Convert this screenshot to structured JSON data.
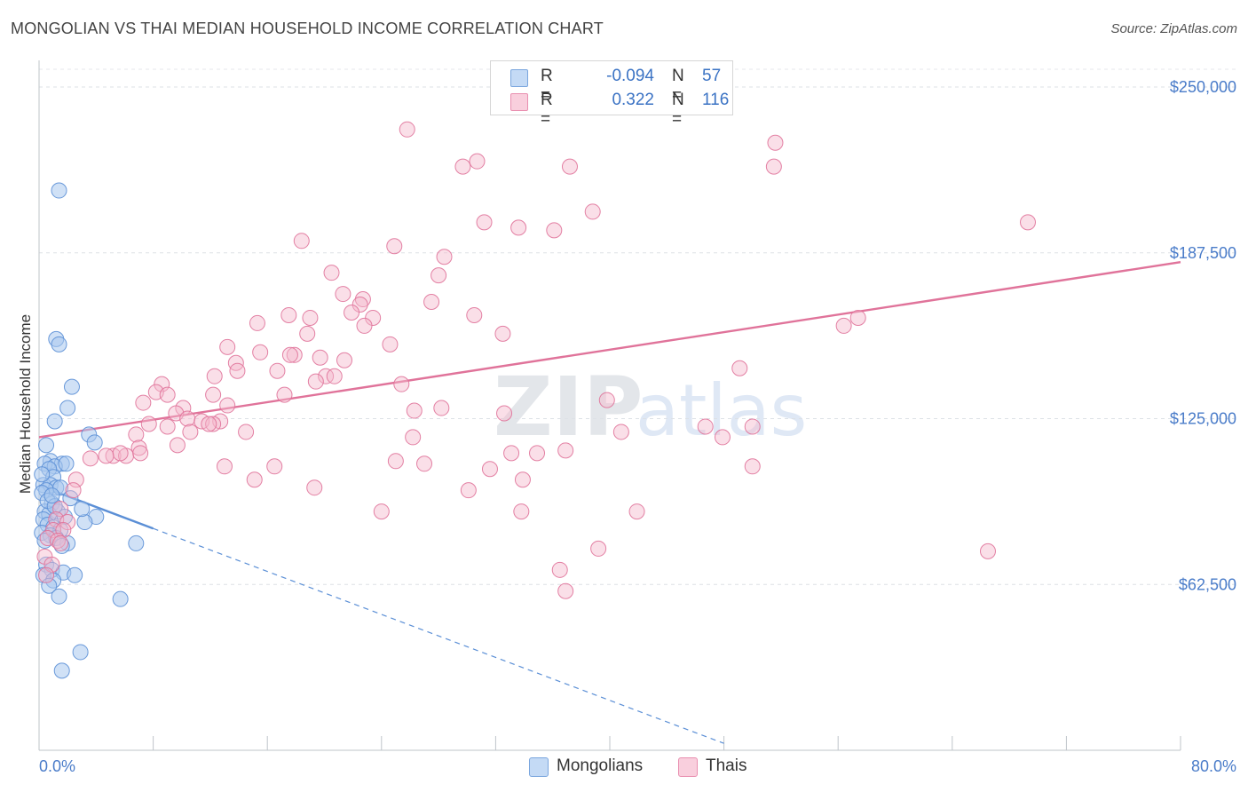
{
  "header": {
    "title": "MONGOLIAN VS THAI MEDIAN HOUSEHOLD INCOME CORRELATION CHART",
    "source": "Source: ZipAtlas.com"
  },
  "watermark": {
    "text_zip": "ZIP",
    "text_atlas": "atlas"
  },
  "legend": {
    "rows": [
      {
        "r_label": "R =",
        "r_value": "-0.094",
        "n_label": "N =",
        "n_value": "57",
        "color": "#a9c8ef"
      },
      {
        "r_label": "R =",
        "r_value": "0.322",
        "n_label": "N =",
        "n_value": "116",
        "color": "#f5b7cb"
      }
    ]
  },
  "bottom_legend": {
    "mongolians": "Mongolians",
    "thais": "Thais"
  },
  "chart_data": {
    "type": "scatter",
    "title": "MONGOLIAN VS THAI MEDIAN HOUSEHOLD INCOME CORRELATION CHART",
    "xlabel": "",
    "ylabel": "Median Household Income",
    "xlim": [
      0,
      80
    ],
    "ylim": [
      0,
      262500
    ],
    "x_tick_labels": [
      "0.0%",
      "80.0%"
    ],
    "y_ticks": [
      62500,
      125000,
      187500,
      250000
    ],
    "y_tick_labels": [
      "$62,500",
      "$125,000",
      "$187,500",
      "$250,000"
    ],
    "grid": true,
    "legend_position": "top-center",
    "series": [
      {
        "name": "Mongolians",
        "color": "#5b8fd6",
        "fill": "#a9c8ef",
        "trend": {
          "x": [
            0,
            8
          ],
          "y": [
            99800,
            83600
          ],
          "dashed_to": [
            48,
            2600
          ]
        },
        "points": [
          [
            1.4,
            211000
          ],
          [
            1.2,
            155000
          ],
          [
            1.4,
            153000
          ],
          [
            2.3,
            137000
          ],
          [
            1.1,
            124000
          ],
          [
            2.0,
            129000
          ],
          [
            3.5,
            119000
          ],
          [
            3.9,
            116000
          ],
          [
            0.5,
            115000
          ],
          [
            0.8,
            109000
          ],
          [
            1.6,
            108000
          ],
          [
            0.4,
            108000
          ],
          [
            1.1,
            107000
          ],
          [
            1.9,
            108000
          ],
          [
            0.7,
            106000
          ],
          [
            1.0,
            103000
          ],
          [
            0.3,
            100000
          ],
          [
            0.8,
            100000
          ],
          [
            1.2,
            99000
          ],
          [
            0.5,
            98000
          ],
          [
            1.5,
            99000
          ],
          [
            0.2,
            97000
          ],
          [
            0.9,
            93000
          ],
          [
            0.4,
            90000
          ],
          [
            1.3,
            90000
          ],
          [
            0.7,
            89000
          ],
          [
            1.8,
            88000
          ],
          [
            4.0,
            88000
          ],
          [
            0.3,
            87000
          ],
          [
            3.2,
            86000
          ],
          [
            0.6,
            85000
          ],
          [
            1.0,
            84000
          ],
          [
            1.5,
            83000
          ],
          [
            0.2,
            82000
          ],
          [
            0.8,
            81000
          ],
          [
            1.2,
            80000
          ],
          [
            0.4,
            79000
          ],
          [
            2.0,
            78000
          ],
          [
            6.8,
            78000
          ],
          [
            1.6,
            77000
          ],
          [
            0.5,
            70000
          ],
          [
            0.9,
            68000
          ],
          [
            1.7,
            67000
          ],
          [
            2.5,
            66000
          ],
          [
            0.3,
            66000
          ],
          [
            1.0,
            64000
          ],
          [
            0.7,
            62000
          ],
          [
            1.4,
            58000
          ],
          [
            5.7,
            57000
          ],
          [
            2.9,
            37000
          ],
          [
            1.6,
            30000
          ],
          [
            0.6,
            94000
          ],
          [
            1.1,
            92000
          ],
          [
            0.9,
            96000
          ],
          [
            2.2,
            95000
          ],
          [
            3.0,
            91000
          ],
          [
            0.2,
            104000
          ]
        ]
      },
      {
        "name": "Thais",
        "color": "#e0739a",
        "fill": "#f5b7cb",
        "trend": {
          "x": [
            0,
            80
          ],
          "y": [
            118000,
            184000
          ]
        },
        "points": [
          [
            25.8,
            234000
          ],
          [
            30.7,
            222000
          ],
          [
            29.7,
            220000
          ],
          [
            37.2,
            220000
          ],
          [
            51.5,
            220000
          ],
          [
            51.6,
            229000
          ],
          [
            69.3,
            199000
          ],
          [
            31.2,
            199000
          ],
          [
            38.8,
            203000
          ],
          [
            33.6,
            197000
          ],
          [
            36.1,
            196000
          ],
          [
            18.4,
            192000
          ],
          [
            24.9,
            190000
          ],
          [
            28.4,
            186000
          ],
          [
            20.5,
            180000
          ],
          [
            28.0,
            179000
          ],
          [
            21.3,
            172000
          ],
          [
            22.7,
            170000
          ],
          [
            27.5,
            169000
          ],
          [
            22.5,
            168000
          ],
          [
            21.9,
            165000
          ],
          [
            30.5,
            164000
          ],
          [
            23.4,
            163000
          ],
          [
            17.5,
            164000
          ],
          [
            19.0,
            163000
          ],
          [
            57.4,
            163000
          ],
          [
            15.3,
            161000
          ],
          [
            22.8,
            160000
          ],
          [
            56.4,
            160000
          ],
          [
            32.5,
            157000
          ],
          [
            18.8,
            157000
          ],
          [
            24.6,
            153000
          ],
          [
            13.2,
            152000
          ],
          [
            15.5,
            150000
          ],
          [
            17.9,
            149000
          ],
          [
            17.6,
            149000
          ],
          [
            19.7,
            148000
          ],
          [
            21.4,
            147000
          ],
          [
            13.8,
            146000
          ],
          [
            49.1,
            144000
          ],
          [
            16.7,
            143000
          ],
          [
            13.9,
            143000
          ],
          [
            20.1,
            141000
          ],
          [
            20.7,
            141000
          ],
          [
            12.3,
            141000
          ],
          [
            19.4,
            139000
          ],
          [
            25.4,
            138000
          ],
          [
            8.6,
            138000
          ],
          [
            8.2,
            135000
          ],
          [
            9.0,
            134000
          ],
          [
            17.2,
            134000
          ],
          [
            12.2,
            134000
          ],
          [
            7.3,
            131000
          ],
          [
            13.2,
            130000
          ],
          [
            39.8,
            132000
          ],
          [
            28.2,
            129000
          ],
          [
            10.1,
            129000
          ],
          [
            26.3,
            128000
          ],
          [
            32.6,
            127000
          ],
          [
            9.6,
            127000
          ],
          [
            10.4,
            125000
          ],
          [
            11.4,
            124000
          ],
          [
            12.7,
            124000
          ],
          [
            7.7,
            123000
          ],
          [
            12.2,
            123000
          ],
          [
            9.0,
            122000
          ],
          [
            11.9,
            123000
          ],
          [
            46.7,
            122000
          ],
          [
            50.0,
            122000
          ],
          [
            10.6,
            120000
          ],
          [
            14.5,
            120000
          ],
          [
            6.8,
            119000
          ],
          [
            26.2,
            118000
          ],
          [
            47.9,
            118000
          ],
          [
            40.8,
            120000
          ],
          [
            9.7,
            115000
          ],
          [
            7.0,
            114000
          ],
          [
            33.1,
            112000
          ],
          [
            34.9,
            112000
          ],
          [
            36.9,
            113000
          ],
          [
            5.2,
            111000
          ],
          [
            6.1,
            111000
          ],
          [
            5.7,
            112000
          ],
          [
            4.7,
            111000
          ],
          [
            7.1,
            112000
          ],
          [
            3.6,
            110000
          ],
          [
            25.0,
            109000
          ],
          [
            13.0,
            107000
          ],
          [
            16.5,
            107000
          ],
          [
            27.0,
            108000
          ],
          [
            50.0,
            107000
          ],
          [
            31.6,
            106000
          ],
          [
            15.1,
            102000
          ],
          [
            2.6,
            102000
          ],
          [
            33.9,
            102000
          ],
          [
            19.3,
            99000
          ],
          [
            30.1,
            98000
          ],
          [
            2.4,
            98000
          ],
          [
            1.5,
            91000
          ],
          [
            24.0,
            90000
          ],
          [
            33.8,
            90000
          ],
          [
            41.9,
            90000
          ],
          [
            1.2,
            87000
          ],
          [
            2.0,
            86000
          ],
          [
            1.0,
            83000
          ],
          [
            1.7,
            83000
          ],
          [
            0.6,
            80000
          ],
          [
            1.3,
            79000
          ],
          [
            1.5,
            78000
          ],
          [
            39.2,
            76000
          ],
          [
            66.5,
            75000
          ],
          [
            0.4,
            73000
          ],
          [
            0.9,
            70000
          ],
          [
            36.5,
            68000
          ],
          [
            0.5,
            66000
          ],
          [
            36.9,
            60000
          ]
        ]
      }
    ]
  }
}
